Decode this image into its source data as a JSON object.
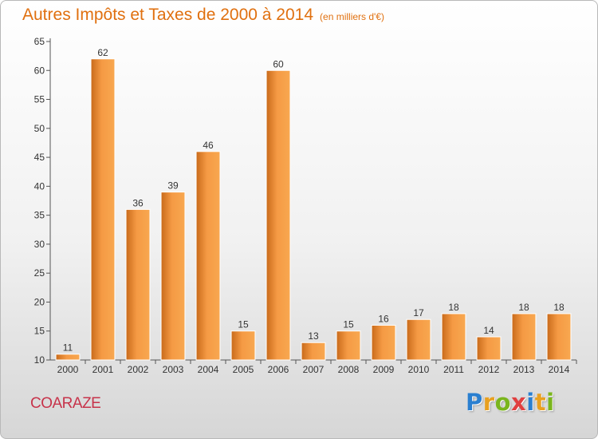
{
  "title": {
    "main": "Autres Impôts et Taxes de 2000 à 2014",
    "unit": "(en milliers d'€)"
  },
  "city": "COARAZE",
  "logo": {
    "letters": [
      {
        "ch": "P",
        "color": "#2a7fd0"
      },
      {
        "ch": "r",
        "color": "#e8a020"
      },
      {
        "ch": "o",
        "color": "#7ab51d"
      },
      {
        "ch": "x",
        "color": "#e04040"
      },
      {
        "ch": "i",
        "color": "#2a7fd0"
      },
      {
        "ch": "t",
        "color": "#e8a020"
      },
      {
        "ch": "i",
        "color": "#7ab51d"
      }
    ]
  },
  "colors": {
    "title": "#e0700f",
    "bar_light": "#f8a850",
    "bar_dark": "#c86a1a",
    "city": "#c7334a"
  },
  "chart_data": {
    "type": "bar",
    "categories": [
      "2000",
      "2001",
      "2002",
      "2003",
      "2004",
      "2005",
      "2006",
      "2007",
      "2008",
      "2009",
      "2010",
      "2011",
      "2012",
      "2013",
      "2014"
    ],
    "values": [
      11,
      62,
      36,
      39,
      46,
      15,
      60,
      13,
      15,
      16,
      17,
      18,
      14,
      18,
      18
    ],
    "ylim": [
      10,
      65
    ],
    "yticks": [
      10,
      15,
      20,
      25,
      30,
      35,
      40,
      45,
      50,
      55,
      60,
      65
    ],
    "grid": false,
    "data_labels": true
  }
}
